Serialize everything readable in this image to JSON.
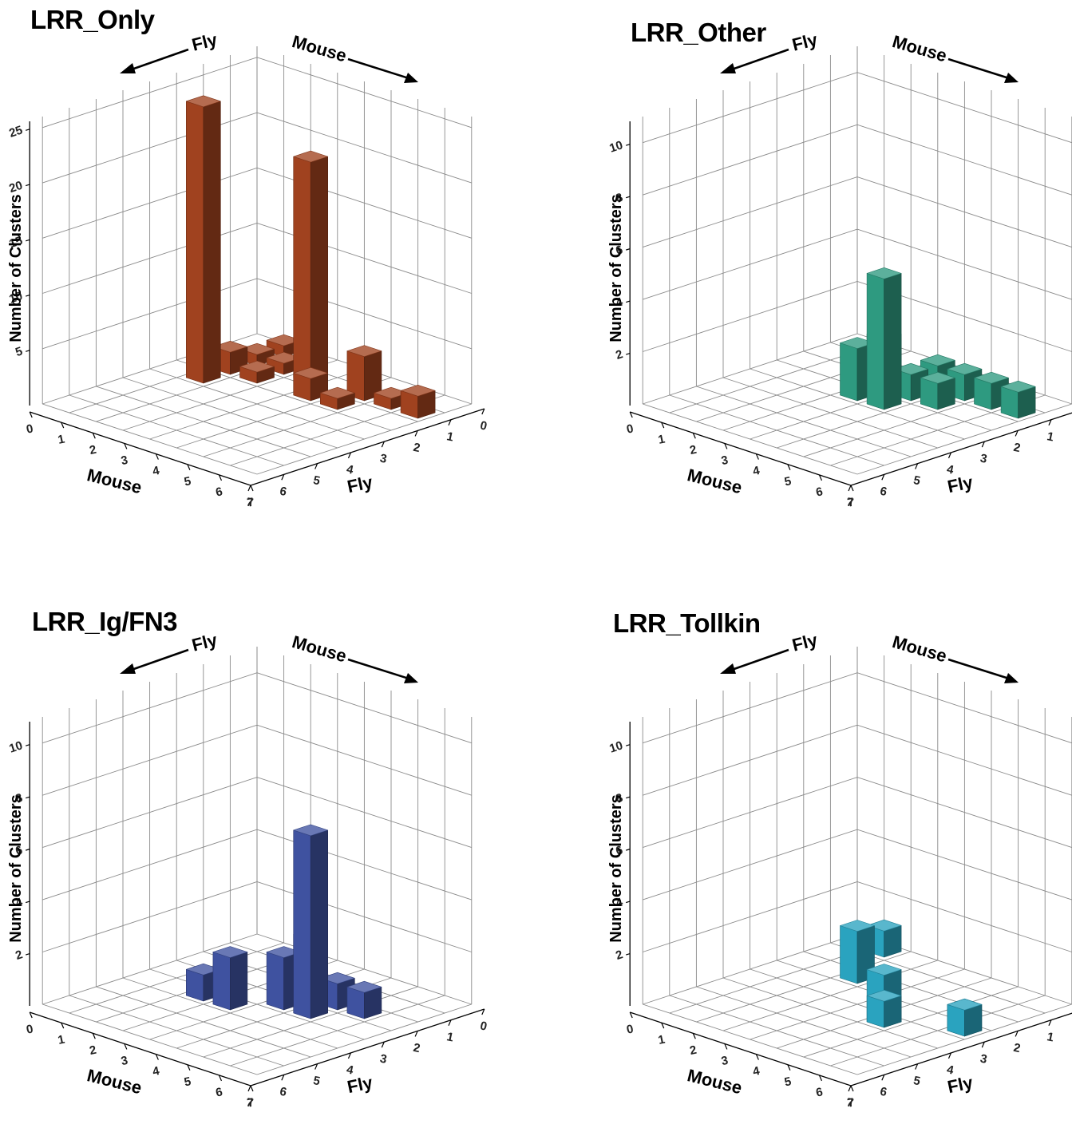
{
  "chart_data": [
    {
      "type": "bar3d",
      "title": "LRR_Only",
      "ylabel": "Number of Clusters",
      "xlabel": "Mouse",
      "zlabel": "Fly",
      "arrow_left_label": "Fly",
      "arrow_right_label": "Mouse",
      "x_ticks": [
        "0",
        "1",
        "2",
        "3",
        "4",
        "5",
        "6",
        "7"
      ],
      "z_ticks": [
        "0",
        "1",
        "2",
        "3",
        "4",
        "5",
        "6",
        "7"
      ],
      "y_ticks": [
        "5",
        "10",
        "15",
        "20",
        "25"
      ],
      "ylim": [
        0,
        26
      ],
      "color": "#a0421f",
      "bars": [
        {
          "mouse": 1,
          "fly": 0,
          "value": 1
        },
        {
          "mouse": 1,
          "fly": 1,
          "value": 1
        },
        {
          "mouse": 1,
          "fly": 2,
          "value": 2
        },
        {
          "mouse": 1,
          "fly": 3,
          "value": 25
        },
        {
          "mouse": 2,
          "fly": 1,
          "value": 1
        },
        {
          "mouse": 2,
          "fly": 2,
          "value": 1
        },
        {
          "mouse": 3,
          "fly": 1,
          "value": 20
        },
        {
          "mouse": 4,
          "fly": 2,
          "value": 2
        },
        {
          "mouse": 5,
          "fly": 1,
          "value": 4
        },
        {
          "mouse": 5,
          "fly": 2,
          "value": 1
        },
        {
          "mouse": 6,
          "fly": 1,
          "value": 1
        },
        {
          "mouse": 7,
          "fly": 1,
          "value": 2
        }
      ]
    },
    {
      "type": "bar3d",
      "title": "LRR_Other",
      "ylabel": "Number of Clusters",
      "xlabel": "Mouse",
      "zlabel": "Fly",
      "arrow_left_label": "Fly",
      "arrow_right_label": "Mouse",
      "x_ticks": [
        "0",
        "1",
        "2",
        "3",
        "4",
        "5",
        "6",
        "7"
      ],
      "z_ticks": [
        "0",
        "1",
        "2",
        "3",
        "4",
        "5",
        "6",
        "7"
      ],
      "y_ticks": [
        "2",
        "4",
        "6",
        "8",
        "10"
      ],
      "ylim": [
        0,
        11
      ],
      "color": "#2e9a80",
      "bars": [
        {
          "mouse": 3,
          "fly": 3,
          "value": 2
        },
        {
          "mouse": 3,
          "fly": 2,
          "value": 2
        },
        {
          "mouse": 4,
          "fly": 3,
          "value": 5
        },
        {
          "mouse": 4,
          "fly": 2,
          "value": 1
        },
        {
          "mouse": 4,
          "fly": 1,
          "value": 1
        },
        {
          "mouse": 5,
          "fly": 2,
          "value": 1
        },
        {
          "mouse": 5,
          "fly": 1,
          "value": 1
        },
        {
          "mouse": 6,
          "fly": 1,
          "value": 1
        },
        {
          "mouse": 7,
          "fly": 1,
          "value": 1
        }
      ]
    },
    {
      "type": "bar3d",
      "title": "LRR_Ig/FN3",
      "ylabel": "Number of Clusters",
      "xlabel": "Mouse",
      "zlabel": "Fly",
      "arrow_left_label": "Fly",
      "arrow_right_label": "Mouse",
      "x_ticks": [
        "0",
        "1",
        "2",
        "3",
        "4",
        "5",
        "6",
        "7"
      ],
      "z_ticks": [
        "0",
        "1",
        "2",
        "3",
        "4",
        "5",
        "6",
        "7"
      ],
      "y_ticks": [
        "2",
        "4",
        "6",
        "8",
        "10"
      ],
      "ylim": [
        0,
        11
      ],
      "color": "#3f52a0",
      "bars": [
        {
          "mouse": 2,
          "fly": 0,
          "value": 1
        },
        {
          "mouse": 2,
          "fly": 4,
          "value": 1
        },
        {
          "mouse": 3,
          "fly": 4,
          "value": 2
        },
        {
          "mouse": 4,
          "fly": 3,
          "value": 2
        },
        {
          "mouse": 4,
          "fly": 2,
          "value": 1
        },
        {
          "mouse": 5,
          "fly": 3,
          "value": 7
        },
        {
          "mouse": 5,
          "fly": 2,
          "value": 1
        },
        {
          "mouse": 6,
          "fly": 2,
          "value": 1
        }
      ]
    },
    {
      "type": "bar3d",
      "title": "LRR_Tollkin",
      "ylabel": "Number of Clusters",
      "xlabel": "Mouse",
      "zlabel": "Fly",
      "arrow_left_label": "Fly",
      "arrow_right_label": "Mouse",
      "x_ticks": [
        "0",
        "1",
        "2",
        "3",
        "4",
        "5",
        "6",
        "7"
      ],
      "z_ticks": [
        "0",
        "1",
        "2",
        "3",
        "4",
        "5",
        "6",
        "7"
      ],
      "y_ticks": [
        "2",
        "4",
        "6",
        "8",
        "10"
      ],
      "ylim": [
        0,
        11
      ],
      "color": "#2aa3bf",
      "bars": [
        {
          "mouse": 1,
          "fly": 0,
          "value": 1
        },
        {
          "mouse": 2,
          "fly": 2,
          "value": 2
        },
        {
          "mouse": 5,
          "fly": 4,
          "value": 2
        },
        {
          "mouse": 5,
          "fly": 4.001,
          "value": 1
        },
        {
          "mouse": 7,
          "fly": 3,
          "value": 1
        },
        {
          "mouse": 7,
          "fly": 3.001,
          "value": 1
        }
      ]
    }
  ]
}
